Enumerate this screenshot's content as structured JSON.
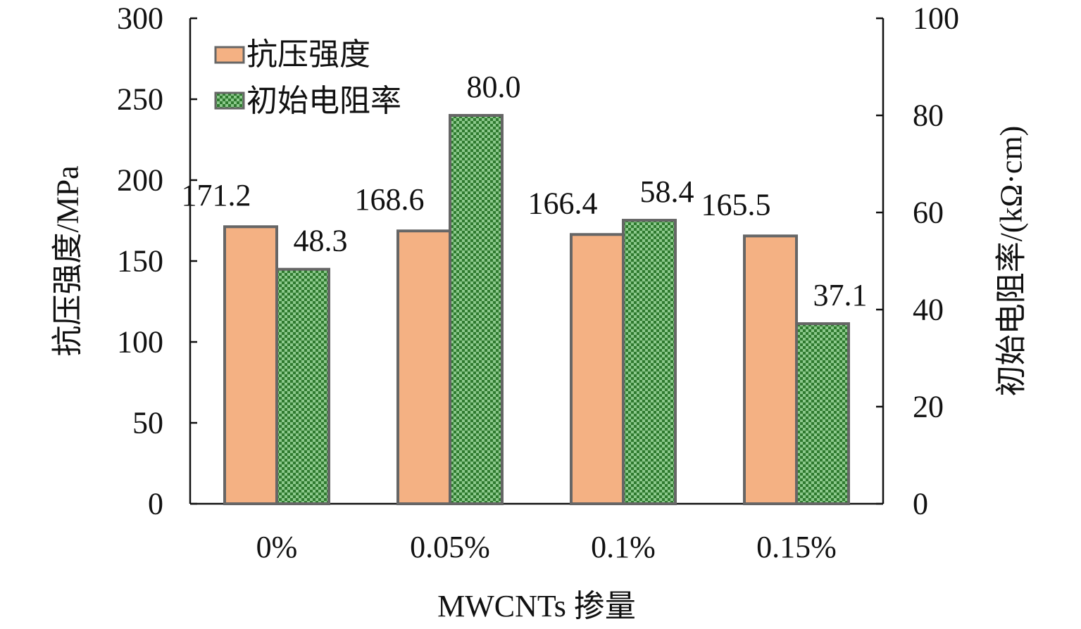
{
  "chart_data": {
    "type": "bar",
    "categories": [
      "0%",
      "0.05%",
      "0.1%",
      "0.15%"
    ],
    "series": [
      {
        "name": "抗压强度",
        "axis": "left",
        "values": [
          171.2,
          168.6,
          166.4,
          165.5
        ],
        "labels": [
          "171.2",
          "168.6",
          "166.4",
          "165.5"
        ],
        "color": "#f4b183",
        "pattern": "solid"
      },
      {
        "name": "初始电阻率",
        "axis": "right",
        "values": [
          48.3,
          80.0,
          58.4,
          37.1
        ],
        "labels": [
          "48.3",
          "80.0",
          "58.4",
          "37.1"
        ],
        "color": "#5aa55a",
        "pattern": "checker"
      }
    ],
    "xlabel": "MWCNTs 掺量",
    "ylabel": "抗压强度/MPa",
    "y2label": "初始电阻率/(kΩ·cm)",
    "ylim": [
      0,
      300
    ],
    "yticks": [
      0,
      50,
      100,
      150,
      200,
      250,
      300
    ],
    "y2lim": [
      0,
      100
    ],
    "y2ticks": [
      0,
      20,
      40,
      60,
      80,
      100
    ],
    "legend_position": "top-left",
    "grid": false,
    "bar_outline_color": "#666666"
  }
}
